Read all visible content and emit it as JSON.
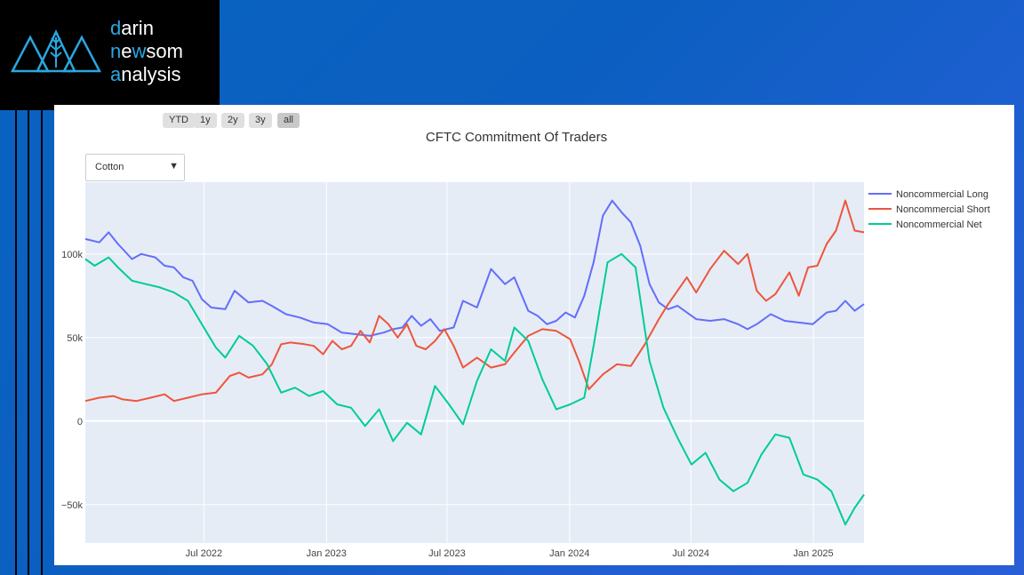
{
  "logo": {
    "line1": "darin",
    "line2": "newsom",
    "line3": "analysis",
    "accent": "#2aa7e0"
  },
  "range_buttons": [
    "YTD",
    "1y",
    "2y",
    "3y",
    "all"
  ],
  "dropdown": {
    "selected": "Cotton"
  },
  "colors": {
    "long": "#636efa",
    "short": "#ef553b",
    "net": "#00cc96",
    "plot_bg": "#e5ecf6"
  },
  "chart_data": {
    "type": "line",
    "title": "CFTC Commitment Of Traders",
    "x_ticks": [
      "Jul 2022",
      "Jan 2023",
      "Jul 2023",
      "Jan 2024",
      "Jul 2024",
      "Jan 2025"
    ],
    "y_ticks": [
      "100k",
      "50k",
      "0",
      "−50k"
    ],
    "ylim": [
      -73000,
      143000
    ],
    "xlim": [
      "2022-01-04",
      "2025-03-18"
    ],
    "legend": "right",
    "series": [
      {
        "name": "Noncommercial Long",
        "points": [
          [
            "2022-01-04",
            109000
          ],
          [
            "2022-01-25",
            107000
          ],
          [
            "2022-02-08",
            113000
          ],
          [
            "2022-02-22",
            106000
          ],
          [
            "2022-03-15",
            97000
          ],
          [
            "2022-03-29",
            100000
          ],
          [
            "2022-04-19",
            98000
          ],
          [
            "2022-05-03",
            93000
          ],
          [
            "2022-05-17",
            92000
          ],
          [
            "2022-05-31",
            86000
          ],
          [
            "2022-06-14",
            84000
          ],
          [
            "2022-06-28",
            73000
          ],
          [
            "2022-07-12",
            68000
          ],
          [
            "2022-08-02",
            67000
          ],
          [
            "2022-08-16",
            78000
          ],
          [
            "2022-09-06",
            71000
          ],
          [
            "2022-09-27",
            72000
          ],
          [
            "2022-10-11",
            69000
          ],
          [
            "2022-11-01",
            64000
          ],
          [
            "2022-11-22",
            62000
          ],
          [
            "2022-12-13",
            59000
          ],
          [
            "2023-01-03",
            58000
          ],
          [
            "2023-01-24",
            53000
          ],
          [
            "2023-02-14",
            52000
          ],
          [
            "2023-03-07",
            51000
          ],
          [
            "2023-03-28",
            53000
          ],
          [
            "2023-04-11",
            55000
          ],
          [
            "2023-04-25",
            56000
          ],
          [
            "2023-05-09",
            63000
          ],
          [
            "2023-05-23",
            57000
          ],
          [
            "2023-06-06",
            61000
          ],
          [
            "2023-06-20",
            54000
          ],
          [
            "2023-07-11",
            56000
          ],
          [
            "2023-07-25",
            72000
          ],
          [
            "2023-08-15",
            68000
          ],
          [
            "2023-09-05",
            91000
          ],
          [
            "2023-09-26",
            82000
          ],
          [
            "2023-10-10",
            86000
          ],
          [
            "2023-10-31",
            66000
          ],
          [
            "2023-11-14",
            63000
          ],
          [
            "2023-11-28",
            58000
          ],
          [
            "2023-12-12",
            60000
          ],
          [
            "2023-12-26",
            65000
          ],
          [
            "2024-01-09",
            62000
          ],
          [
            "2024-01-23",
            75000
          ],
          [
            "2024-02-06",
            95000
          ],
          [
            "2024-02-20",
            123000
          ],
          [
            "2024-03-05",
            132000
          ],
          [
            "2024-03-19",
            125000
          ],
          [
            "2024-04-02",
            119000
          ],
          [
            "2024-04-16",
            105000
          ],
          [
            "2024-04-30",
            82000
          ],
          [
            "2024-05-14",
            71000
          ],
          [
            "2024-05-28",
            67000
          ],
          [
            "2024-06-11",
            69000
          ],
          [
            "2024-06-25",
            65000
          ],
          [
            "2024-07-09",
            61000
          ],
          [
            "2024-07-30",
            60000
          ],
          [
            "2024-08-20",
            61000
          ],
          [
            "2024-09-10",
            58000
          ],
          [
            "2024-09-24",
            55000
          ],
          [
            "2024-10-08",
            58000
          ],
          [
            "2024-10-29",
            64000
          ],
          [
            "2024-11-19",
            60000
          ],
          [
            "2024-12-10",
            59000
          ],
          [
            "2024-12-31",
            58000
          ],
          [
            "2025-01-21",
            65000
          ],
          [
            "2025-02-04",
            66000
          ],
          [
            "2025-02-18",
            72000
          ],
          [
            "2025-03-04",
            66000
          ],
          [
            "2025-03-18",
            70000
          ]
        ]
      },
      {
        "name": "Noncommercial Short",
        "points": [
          [
            "2022-01-04",
            12000
          ],
          [
            "2022-01-25",
            14000
          ],
          [
            "2022-02-15",
            15000
          ],
          [
            "2022-03-01",
            13000
          ],
          [
            "2022-03-22",
            12000
          ],
          [
            "2022-04-12",
            14000
          ],
          [
            "2022-05-03",
            16000
          ],
          [
            "2022-05-17",
            12000
          ],
          [
            "2022-06-07",
            14000
          ],
          [
            "2022-06-28",
            16000
          ],
          [
            "2022-07-19",
            17000
          ],
          [
            "2022-08-09",
            27000
          ],
          [
            "2022-08-23",
            29000
          ],
          [
            "2022-09-06",
            26000
          ],
          [
            "2022-09-27",
            28000
          ],
          [
            "2022-10-11",
            34000
          ],
          [
            "2022-10-25",
            46000
          ],
          [
            "2022-11-08",
            47000
          ],
          [
            "2022-11-29",
            46000
          ],
          [
            "2022-12-13",
            45000
          ],
          [
            "2022-12-27",
            40000
          ],
          [
            "2023-01-10",
            48000
          ],
          [
            "2023-01-24",
            43000
          ],
          [
            "2023-02-07",
            45000
          ],
          [
            "2023-02-21",
            54000
          ],
          [
            "2023-03-07",
            47000
          ],
          [
            "2023-03-21",
            63000
          ],
          [
            "2023-04-04",
            58000
          ],
          [
            "2023-04-18",
            50000
          ],
          [
            "2023-05-02",
            58000
          ],
          [
            "2023-05-16",
            45000
          ],
          [
            "2023-05-30",
            43000
          ],
          [
            "2023-06-13",
            48000
          ],
          [
            "2023-06-27",
            55000
          ],
          [
            "2023-07-11",
            45000
          ],
          [
            "2023-07-25",
            32000
          ],
          [
            "2023-08-15",
            38000
          ],
          [
            "2023-09-05",
            32000
          ],
          [
            "2023-09-26",
            34000
          ],
          [
            "2023-10-10",
            41000
          ],
          [
            "2023-10-31",
            51000
          ],
          [
            "2023-11-21",
            55000
          ],
          [
            "2023-12-12",
            54000
          ],
          [
            "2024-01-02",
            49000
          ],
          [
            "2024-01-16",
            35000
          ],
          [
            "2024-01-30",
            19000
          ],
          [
            "2024-02-20",
            28000
          ],
          [
            "2024-03-12",
            34000
          ],
          [
            "2024-04-02",
            33000
          ],
          [
            "2024-04-23",
            46000
          ],
          [
            "2024-05-14",
            61000
          ],
          [
            "2024-05-28",
            70000
          ],
          [
            "2024-06-11",
            78000
          ],
          [
            "2024-06-25",
            86000
          ],
          [
            "2024-07-09",
            77000
          ],
          [
            "2024-07-30",
            91000
          ],
          [
            "2024-08-20",
            102000
          ],
          [
            "2024-09-10",
            94000
          ],
          [
            "2024-09-24",
            100000
          ],
          [
            "2024-10-08",
            78000
          ],
          [
            "2024-10-22",
            72000
          ],
          [
            "2024-11-05",
            76000
          ],
          [
            "2024-11-26",
            89000
          ],
          [
            "2024-12-10",
            75000
          ],
          [
            "2024-12-24",
            92000
          ],
          [
            "2025-01-07",
            93000
          ],
          [
            "2025-01-21",
            106000
          ],
          [
            "2025-02-04",
            114000
          ],
          [
            "2025-02-18",
            132000
          ],
          [
            "2025-03-04",
            114000
          ],
          [
            "2025-03-18",
            113000
          ]
        ]
      },
      {
        "name": "Noncommercial Net",
        "points": [
          [
            "2022-01-04",
            97000
          ],
          [
            "2022-01-18",
            93000
          ],
          [
            "2022-02-08",
            98000
          ],
          [
            "2022-02-22",
            92000
          ],
          [
            "2022-03-15",
            84000
          ],
          [
            "2022-04-05",
            82000
          ],
          [
            "2022-04-26",
            80000
          ],
          [
            "2022-05-17",
            77000
          ],
          [
            "2022-06-07",
            72000
          ],
          [
            "2022-06-28",
            58000
          ],
          [
            "2022-07-19",
            44000
          ],
          [
            "2022-08-02",
            38000
          ],
          [
            "2022-08-23",
            51000
          ],
          [
            "2022-09-13",
            45000
          ],
          [
            "2022-10-04",
            34000
          ],
          [
            "2022-10-25",
            17000
          ],
          [
            "2022-11-15",
            20000
          ],
          [
            "2022-12-06",
            15000
          ],
          [
            "2022-12-27",
            18000
          ],
          [
            "2023-01-17",
            10000
          ],
          [
            "2023-02-07",
            8000
          ],
          [
            "2023-02-28",
            -3000
          ],
          [
            "2023-03-21",
            7000
          ],
          [
            "2023-04-11",
            -12000
          ],
          [
            "2023-05-02",
            -1000
          ],
          [
            "2023-05-23",
            -8000
          ],
          [
            "2023-06-13",
            21000
          ],
          [
            "2023-07-04",
            10000
          ],
          [
            "2023-07-25",
            -2000
          ],
          [
            "2023-08-15",
            24000
          ],
          [
            "2023-09-05",
            43000
          ],
          [
            "2023-09-26",
            36000
          ],
          [
            "2023-10-10",
            56000
          ],
          [
            "2023-10-31",
            48000
          ],
          [
            "2023-11-21",
            25000
          ],
          [
            "2023-12-12",
            7000
          ],
          [
            "2024-01-02",
            10000
          ],
          [
            "2024-01-23",
            14000
          ],
          [
            "2024-02-06",
            45000
          ],
          [
            "2024-02-27",
            95000
          ],
          [
            "2024-03-19",
            100000
          ],
          [
            "2024-04-09",
            92000
          ],
          [
            "2024-04-30",
            36000
          ],
          [
            "2024-05-21",
            8000
          ],
          [
            "2024-06-11",
            -10000
          ],
          [
            "2024-07-02",
            -26000
          ],
          [
            "2024-07-23",
            -19000
          ],
          [
            "2024-08-13",
            -35000
          ],
          [
            "2024-09-03",
            -42000
          ],
          [
            "2024-09-24",
            -37000
          ],
          [
            "2024-10-15",
            -20000
          ],
          [
            "2024-11-05",
            -8000
          ],
          [
            "2024-11-26",
            -10000
          ],
          [
            "2024-12-17",
            -32000
          ],
          [
            "2025-01-07",
            -35000
          ],
          [
            "2025-01-28",
            -42000
          ],
          [
            "2025-02-18",
            -62000
          ],
          [
            "2025-03-04",
            -52000
          ],
          [
            "2025-03-18",
            -44000
          ]
        ]
      }
    ]
  }
}
